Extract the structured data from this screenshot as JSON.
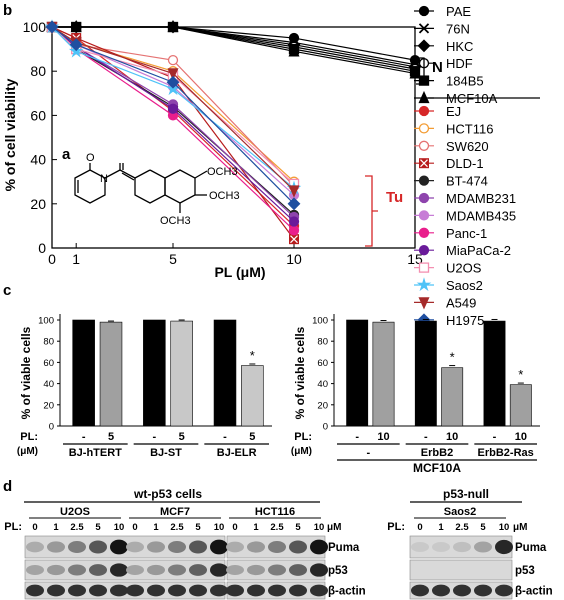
{
  "panel_labels": {
    "b": "b",
    "a": "a",
    "c": "c",
    "d": "d"
  },
  "chart_data": [
    {
      "type": "line",
      "panel": "b",
      "ylabel": "% of cell viability",
      "xlabel_prefix": "PL (",
      "xlabel_mu": "μ",
      "xlabel_suffix": "M)",
      "xlim": [
        0,
        15
      ],
      "ylim": [
        0,
        100
      ],
      "xticks": [
        0,
        1,
        5,
        10,
        15
      ],
      "yticks": [
        0,
        20,
        40,
        60,
        80,
        100
      ],
      "x": [
        0,
        1,
        5,
        10
      ],
      "normal_x": [
        0,
        1,
        5,
        10,
        15
      ],
      "normal_group_label": "N",
      "tumor_group_label": "Tu",
      "structure": {
        "groups": [
          "OCH3",
          "OCH3",
          "OCH3"
        ],
        "atom_o": "O",
        "atom_n": "N"
      },
      "normal_series": [
        {
          "name": "PAE",
          "values": [
            100,
            100,
            100,
            95,
            85
          ],
          "color": "#000000",
          "marker": "dot"
        },
        {
          "name": "76N",
          "values": [
            100,
            100,
            100,
            93,
            83
          ],
          "color": "#000000",
          "marker": "x"
        },
        {
          "name": "HKC",
          "values": [
            100,
            100,
            100,
            92,
            82
          ],
          "color": "#000000",
          "marker": "diamond"
        },
        {
          "name": "HDF",
          "values": [
            100,
            100,
            100,
            91,
            81
          ],
          "color": "#000000",
          "marker": "circle-open"
        },
        {
          "name": "184B5",
          "values": [
            100,
            100,
            100,
            90,
            80
          ],
          "color": "#000000",
          "marker": "square"
        },
        {
          "name": "MCF10A",
          "values": [
            100,
            100,
            100,
            89,
            79
          ],
          "color": "#000000",
          "marker": "triangle"
        }
      ],
      "tumor_series": [
        {
          "name": "EJ",
          "values": [
            100,
            95,
            62,
            10
          ],
          "color": "#d62728",
          "marker": "dot"
        },
        {
          "name": "HCT116",
          "values": [
            100,
            93,
            80,
            30
          ],
          "color": "#f39c33",
          "marker": "circle-open"
        },
        {
          "name": "SW620",
          "values": [
            100,
            92,
            85,
            28
          ],
          "color": "#e57373",
          "marker": "circle-open"
        },
        {
          "name": "DLD-1",
          "values": [
            100,
            95,
            77,
            4
          ],
          "color": "#b71c1c",
          "marker": "square-x"
        },
        {
          "name": "BT-474",
          "values": [
            100,
            90,
            64,
            15
          ],
          "color": "#222222",
          "marker": "dot"
        },
        {
          "name": "MDAMB231",
          "values": [
            100,
            91,
            65,
            14
          ],
          "color": "#8e44ad",
          "marker": "dot"
        },
        {
          "name": "MDAMB435",
          "values": [
            100,
            92,
            73,
            24
          ],
          "color": "#c77dd6",
          "marker": "dot"
        },
        {
          "name": "Panc-1",
          "values": [
            100,
            90,
            60,
            8
          ],
          "color": "#e91e8c",
          "marker": "dot"
        },
        {
          "name": "MiaPaCa-2",
          "values": [
            100,
            91,
            63,
            12
          ],
          "color": "#6a1b9a",
          "marker": "dot"
        },
        {
          "name": "U2OS",
          "values": [
            100,
            90,
            78,
            29
          ],
          "color": "#f48fb1",
          "marker": "square-open"
        },
        {
          "name": "Saos2",
          "values": [
            100,
            89,
            72,
            27
          ],
          "color": "#4fc3f7",
          "marker": "star"
        },
        {
          "name": "A549",
          "values": [
            100,
            93,
            79,
            26
          ],
          "color": "#a52a2a",
          "marker": "triangle-down"
        },
        {
          "name": "H1975",
          "values": [
            100,
            92,
            75,
            20
          ],
          "color": "#1f4fa0",
          "marker": "diamond"
        }
      ]
    },
    {
      "type": "bar",
      "panel": "c-left",
      "ylabel": "% of viable cells",
      "ylim": [
        0,
        100
      ],
      "yticks": [
        0,
        20,
        40,
        60,
        80,
        100
      ],
      "pl_label": "PL:",
      "unit_label": "(μM)",
      "bars": [
        {
          "pl": "-",
          "value": 100,
          "color": "#000000",
          "err": 0
        },
        {
          "pl": "5",
          "value": 98,
          "color": "#a0a0a0",
          "err": 1
        },
        {
          "pl": "-",
          "value": 100,
          "color": "#000000",
          "err": 0
        },
        {
          "pl": "5",
          "value": 99,
          "color": "#c8c8c8",
          "err": 1
        },
        {
          "pl": "-",
          "value": 100,
          "color": "#000000",
          "err": 0
        },
        {
          "pl": "5",
          "value": 57,
          "color": "#c8c8c8",
          "err": 1.5,
          "star": "*"
        }
      ],
      "groups": [
        "BJ-hTERT",
        "BJ-ST",
        "BJ-ELR"
      ]
    },
    {
      "type": "bar",
      "panel": "c-right",
      "ylabel": "% of viable cells",
      "ylim": [
        0,
        100
      ],
      "yticks": [
        0,
        20,
        40,
        60,
        80,
        100
      ],
      "pl_label": "PL:",
      "unit_label": "(μM)",
      "bars": [
        {
          "pl": "-",
          "value": 100,
          "color": "#000000",
          "err": 0
        },
        {
          "pl": "10",
          "value": 98,
          "color": "#a0a0a0",
          "err": 1.5
        },
        {
          "pl": "-",
          "value": 99,
          "color": "#000000",
          "err": 1.5
        },
        {
          "pl": "10",
          "value": 55,
          "color": "#a0a0a0",
          "err": 2,
          "star": "*"
        },
        {
          "pl": "-",
          "value": 99,
          "color": "#000000",
          "err": 1.5
        },
        {
          "pl": "10",
          "value": 39,
          "color": "#a0a0a0",
          "err": 1.5,
          "star": "*"
        }
      ],
      "groups": [
        "-",
        "ErbB2",
        "ErbB2-Ras"
      ],
      "super_group": "MCF10A"
    },
    {
      "type": "table",
      "panel": "d",
      "header_left": "wt-p53 cells",
      "header_right": "p53-null",
      "pl_label": "PL:",
      "unit": "μM",
      "left_lines": [
        "U2OS",
        "MCF7",
        "HCT116"
      ],
      "right_lines": [
        "Saos2"
      ],
      "doses": [
        "0",
        "1",
        "2.5",
        "5",
        "10"
      ],
      "blots": [
        "Puma",
        "p53",
        "β-actin"
      ]
    }
  ]
}
